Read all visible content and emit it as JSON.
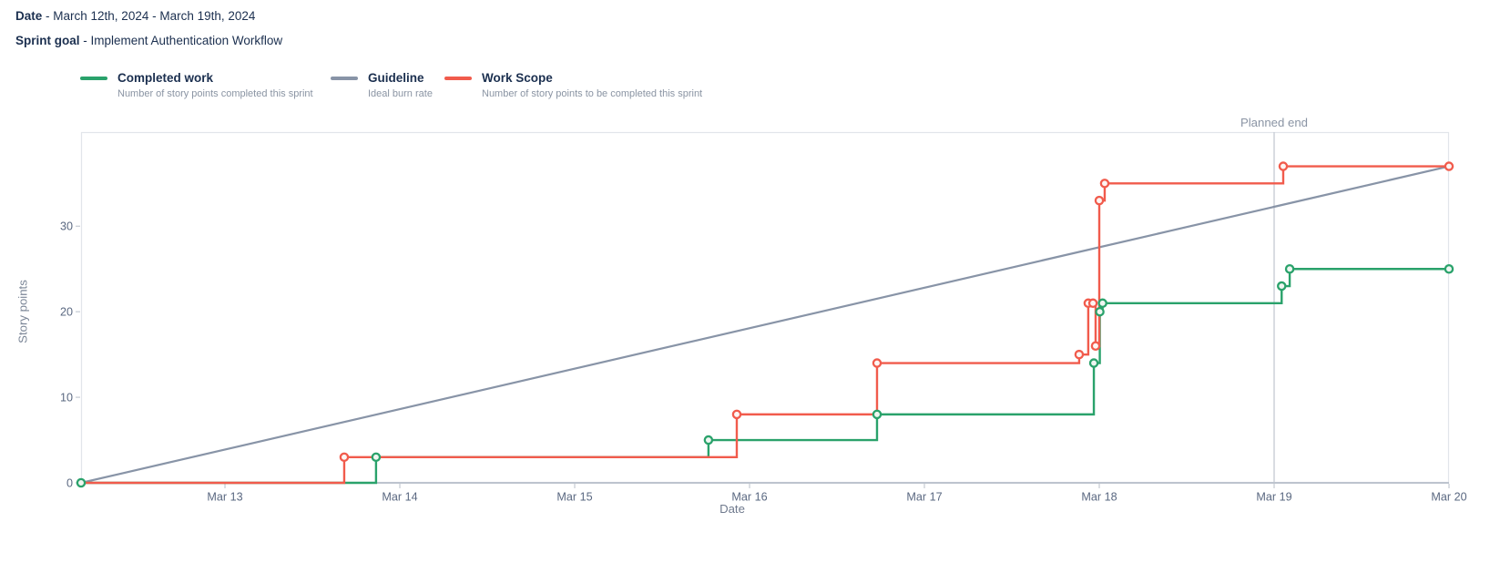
{
  "header": {
    "date_label": "Date",
    "date_value": "- March 12th, 2024 - March 19th, 2024",
    "goal_label": "Sprint goal",
    "goal_value": "- Implement Authentication Workflow"
  },
  "legend": {
    "items": [
      {
        "label": "Completed work",
        "description": "Number of story points completed this sprint",
        "color": "#2aa26b"
      },
      {
        "label": "Guideline",
        "description": "Ideal burn rate",
        "color": "#8894a7"
      },
      {
        "label": "Work Scope",
        "description": "Number of story points to be completed this sprint",
        "color": "#f15b4c"
      }
    ]
  },
  "chart_data": {
    "type": "line",
    "xlabel": "Date",
    "ylabel": "Story points",
    "x_unit": "day of March 2024 (fractional = time of day)",
    "x_domain": [
      12.177,
      20
    ],
    "y_domain": [
      0,
      41
    ],
    "grid": false,
    "legend_position": "top-left",
    "x_ticks": [
      {
        "v": 13,
        "label": "Mar 13"
      },
      {
        "v": 14,
        "label": "Mar 14"
      },
      {
        "v": 15,
        "label": "Mar 15"
      },
      {
        "v": 16,
        "label": "Mar 16"
      },
      {
        "v": 17,
        "label": "Mar 17"
      },
      {
        "v": 18,
        "label": "Mar 18"
      },
      {
        "v": 19,
        "label": "Mar 19"
      },
      {
        "v": 20,
        "label": "Mar 20"
      }
    ],
    "y_ticks": [
      {
        "v": 0,
        "label": "0"
      },
      {
        "v": 10,
        "label": "10"
      },
      {
        "v": 20,
        "label": "20"
      },
      {
        "v": 30,
        "label": "30"
      }
    ],
    "annotation": {
      "label": "Planned end",
      "x": 19
    },
    "series": [
      {
        "name": "Guideline",
        "color": "#8894a7",
        "line": "straight",
        "width": 2.2,
        "markers": false,
        "points": [
          [
            12.177,
            0
          ],
          [
            20,
            37
          ]
        ]
      },
      {
        "name": "Completed work",
        "color": "#2aa26b",
        "marker_fill": "#eff6f1",
        "line": "step-after",
        "width": 2.4,
        "markers": true,
        "markers_from": 0,
        "points": [
          [
            12.177,
            0
          ],
          [
            13.864,
            3
          ],
          [
            15.765,
            5
          ],
          [
            16.729,
            8
          ],
          [
            17.969,
            14
          ],
          [
            18.003,
            20
          ],
          [
            18.019,
            21
          ],
          [
            19.043,
            23
          ],
          [
            19.089,
            25
          ],
          [
            20,
            25
          ]
        ]
      },
      {
        "name": "Work Scope",
        "color": "#f15b4c",
        "marker_fill": "#fdf5f3",
        "line": "step-after",
        "width": 2.4,
        "markers": true,
        "markers_from": 1,
        "points": [
          [
            12.177,
            0
          ],
          [
            13.682,
            3
          ],
          [
            15.927,
            8
          ],
          [
            16.729,
            14
          ],
          [
            17.885,
            15
          ],
          [
            17.937,
            21
          ],
          [
            17.964,
            21
          ],
          [
            17.979,
            16
          ],
          [
            18.0,
            33
          ],
          [
            18.031,
            35
          ],
          [
            19.052,
            37
          ],
          [
            20,
            37
          ]
        ]
      }
    ]
  }
}
